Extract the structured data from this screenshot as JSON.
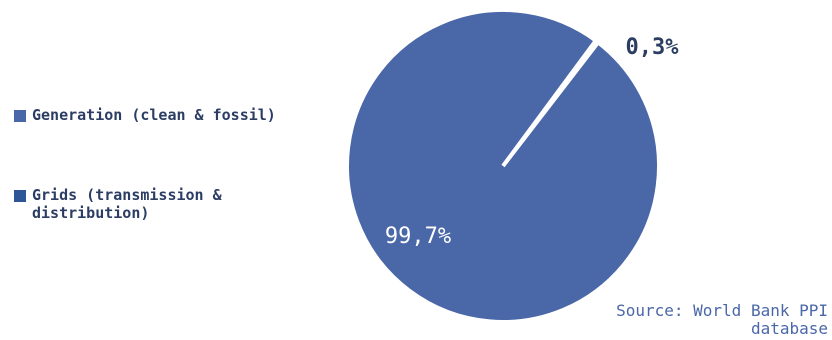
{
  "chart_data": {
    "type": "pie",
    "slices": [
      {
        "label": "Generation (clean & fossil)",
        "value": 0.3,
        "display": "0,3%",
        "color": "#4a67a7"
      },
      {
        "label": "Grids (transmission & distribution)",
        "value": 99.7,
        "display": "99,7%",
        "color": "#4a67a7"
      }
    ],
    "legend": [
      {
        "label": "Generation (clean & fossil)",
        "color": "#4a67a7"
      },
      {
        "label": "Grids (transmission &\ndistribution)",
        "color": "#2e5596"
      }
    ],
    "legend_position": "left",
    "source": "Source: World Bank PPI\ndatabase"
  }
}
